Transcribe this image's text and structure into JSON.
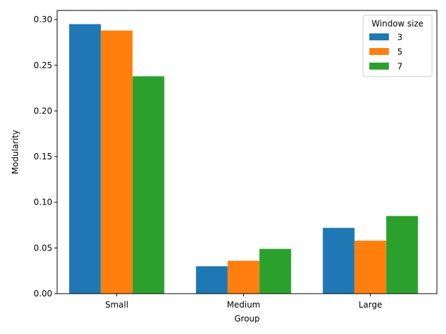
{
  "chart_data": {
    "type": "bar",
    "title": "",
    "xlabel": "Group",
    "ylabel": "Modularity",
    "categories": [
      "Small",
      "Medium",
      "Large"
    ],
    "series": [
      {
        "name": "3",
        "color": "#1f77b4",
        "values": [
          0.295,
          0.03,
          0.072
        ]
      },
      {
        "name": "5",
        "color": "#ff7f0e",
        "values": [
          0.288,
          0.036,
          0.058
        ]
      },
      {
        "name": "7",
        "color": "#2ca02c",
        "values": [
          0.238,
          0.049,
          0.085
        ]
      }
    ],
    "ylim": [
      0,
      0.31
    ],
    "yticks": [
      "0.00",
      "0.05",
      "0.10",
      "0.15",
      "0.20",
      "0.25",
      "0.30"
    ],
    "legend": {
      "title": "Window size",
      "placement": "top-right"
    },
    "grid": false
  }
}
